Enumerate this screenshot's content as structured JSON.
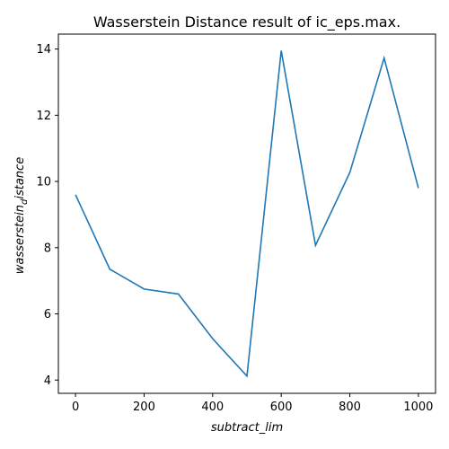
{
  "chart_data": {
    "type": "line",
    "title": "Wasserstein Distance result of ic_eps.max.",
    "xlabel": "subtract_lim",
    "ylabel_main": "wasserstein",
    "ylabel_sub": "d",
    "ylabel_rest": "istance",
    "xlim": [
      -50,
      1050
    ],
    "ylim": [
      3.6,
      14.45
    ],
    "xticks": [
      0,
      200,
      400,
      600,
      800,
      1000
    ],
    "yticks": [
      4,
      6,
      8,
      10,
      12,
      14
    ],
    "grid": false,
    "series": [
      {
        "color": "#1f77b4",
        "x": [
          0,
          100,
          200,
          300,
          400,
          500,
          600,
          700,
          800,
          900,
          1000
        ],
        "y": [
          9.6,
          7.35,
          6.75,
          6.6,
          5.25,
          4.12,
          13.95,
          8.07,
          10.27,
          13.73,
          9.8
        ]
      }
    ]
  }
}
